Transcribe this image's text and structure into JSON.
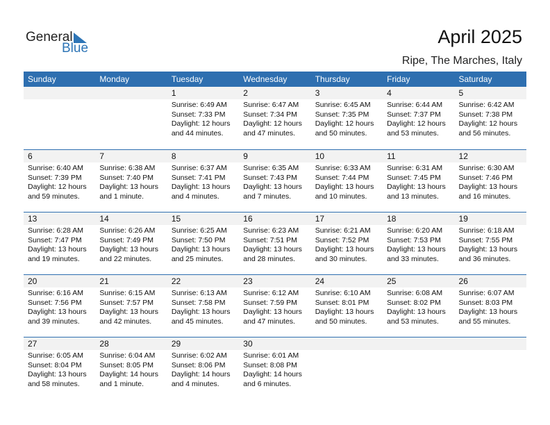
{
  "logo": {
    "general": "General",
    "blue": "Blue"
  },
  "title": "April 2025",
  "location": "Ripe, The Marches, Italy",
  "colors": {
    "header": "#2e6fb0",
    "band": "#f2f2f2",
    "logo_blue": "#2e75b6"
  },
  "weekdays": [
    "Sunday",
    "Monday",
    "Tuesday",
    "Wednesday",
    "Thursday",
    "Friday",
    "Saturday"
  ],
  "weeks": [
    [
      null,
      null,
      {
        "day": "1",
        "sunrise": "Sunrise: 6:49 AM",
        "sunset": "Sunset: 7:33 PM",
        "daylight": "Daylight: 12 hours",
        "minutes": "and 44 minutes."
      },
      {
        "day": "2",
        "sunrise": "Sunrise: 6:47 AM",
        "sunset": "Sunset: 7:34 PM",
        "daylight": "Daylight: 12 hours",
        "minutes": "and 47 minutes."
      },
      {
        "day": "3",
        "sunrise": "Sunrise: 6:45 AM",
        "sunset": "Sunset: 7:35 PM",
        "daylight": "Daylight: 12 hours",
        "minutes": "and 50 minutes."
      },
      {
        "day": "4",
        "sunrise": "Sunrise: 6:44 AM",
        "sunset": "Sunset: 7:37 PM",
        "daylight": "Daylight: 12 hours",
        "minutes": "and 53 minutes."
      },
      {
        "day": "5",
        "sunrise": "Sunrise: 6:42 AM",
        "sunset": "Sunset: 7:38 PM",
        "daylight": "Daylight: 12 hours",
        "minutes": "and 56 minutes."
      }
    ],
    [
      {
        "day": "6",
        "sunrise": "Sunrise: 6:40 AM",
        "sunset": "Sunset: 7:39 PM",
        "daylight": "Daylight: 12 hours",
        "minutes": "and 59 minutes."
      },
      {
        "day": "7",
        "sunrise": "Sunrise: 6:38 AM",
        "sunset": "Sunset: 7:40 PM",
        "daylight": "Daylight: 13 hours",
        "minutes": "and 1 minute."
      },
      {
        "day": "8",
        "sunrise": "Sunrise: 6:37 AM",
        "sunset": "Sunset: 7:41 PM",
        "daylight": "Daylight: 13 hours",
        "minutes": "and 4 minutes."
      },
      {
        "day": "9",
        "sunrise": "Sunrise: 6:35 AM",
        "sunset": "Sunset: 7:43 PM",
        "daylight": "Daylight: 13 hours",
        "minutes": "and 7 minutes."
      },
      {
        "day": "10",
        "sunrise": "Sunrise: 6:33 AM",
        "sunset": "Sunset: 7:44 PM",
        "daylight": "Daylight: 13 hours",
        "minutes": "and 10 minutes."
      },
      {
        "day": "11",
        "sunrise": "Sunrise: 6:31 AM",
        "sunset": "Sunset: 7:45 PM",
        "daylight": "Daylight: 13 hours",
        "minutes": "and 13 minutes."
      },
      {
        "day": "12",
        "sunrise": "Sunrise: 6:30 AM",
        "sunset": "Sunset: 7:46 PM",
        "daylight": "Daylight: 13 hours",
        "minutes": "and 16 minutes."
      }
    ],
    [
      {
        "day": "13",
        "sunrise": "Sunrise: 6:28 AM",
        "sunset": "Sunset: 7:47 PM",
        "daylight": "Daylight: 13 hours",
        "minutes": "and 19 minutes."
      },
      {
        "day": "14",
        "sunrise": "Sunrise: 6:26 AM",
        "sunset": "Sunset: 7:49 PM",
        "daylight": "Daylight: 13 hours",
        "minutes": "and 22 minutes."
      },
      {
        "day": "15",
        "sunrise": "Sunrise: 6:25 AM",
        "sunset": "Sunset: 7:50 PM",
        "daylight": "Daylight: 13 hours",
        "minutes": "and 25 minutes."
      },
      {
        "day": "16",
        "sunrise": "Sunrise: 6:23 AM",
        "sunset": "Sunset: 7:51 PM",
        "daylight": "Daylight: 13 hours",
        "minutes": "and 28 minutes."
      },
      {
        "day": "17",
        "sunrise": "Sunrise: 6:21 AM",
        "sunset": "Sunset: 7:52 PM",
        "daylight": "Daylight: 13 hours",
        "minutes": "and 30 minutes."
      },
      {
        "day": "18",
        "sunrise": "Sunrise: 6:20 AM",
        "sunset": "Sunset: 7:53 PM",
        "daylight": "Daylight: 13 hours",
        "minutes": "and 33 minutes."
      },
      {
        "day": "19",
        "sunrise": "Sunrise: 6:18 AM",
        "sunset": "Sunset: 7:55 PM",
        "daylight": "Daylight: 13 hours",
        "minutes": "and 36 minutes."
      }
    ],
    [
      {
        "day": "20",
        "sunrise": "Sunrise: 6:16 AM",
        "sunset": "Sunset: 7:56 PM",
        "daylight": "Daylight: 13 hours",
        "minutes": "and 39 minutes."
      },
      {
        "day": "21",
        "sunrise": "Sunrise: 6:15 AM",
        "sunset": "Sunset: 7:57 PM",
        "daylight": "Daylight: 13 hours",
        "minutes": "and 42 minutes."
      },
      {
        "day": "22",
        "sunrise": "Sunrise: 6:13 AM",
        "sunset": "Sunset: 7:58 PM",
        "daylight": "Daylight: 13 hours",
        "minutes": "and 45 minutes."
      },
      {
        "day": "23",
        "sunrise": "Sunrise: 6:12 AM",
        "sunset": "Sunset: 7:59 PM",
        "daylight": "Daylight: 13 hours",
        "minutes": "and 47 minutes."
      },
      {
        "day": "24",
        "sunrise": "Sunrise: 6:10 AM",
        "sunset": "Sunset: 8:01 PM",
        "daylight": "Daylight: 13 hours",
        "minutes": "and 50 minutes."
      },
      {
        "day": "25",
        "sunrise": "Sunrise: 6:08 AM",
        "sunset": "Sunset: 8:02 PM",
        "daylight": "Daylight: 13 hours",
        "minutes": "and 53 minutes."
      },
      {
        "day": "26",
        "sunrise": "Sunrise: 6:07 AM",
        "sunset": "Sunset: 8:03 PM",
        "daylight": "Daylight: 13 hours",
        "minutes": "and 55 minutes."
      }
    ],
    [
      {
        "day": "27",
        "sunrise": "Sunrise: 6:05 AM",
        "sunset": "Sunset: 8:04 PM",
        "daylight": "Daylight: 13 hours",
        "minutes": "and 58 minutes."
      },
      {
        "day": "28",
        "sunrise": "Sunrise: 6:04 AM",
        "sunset": "Sunset: 8:05 PM",
        "daylight": "Daylight: 14 hours",
        "minutes": "and 1 minute."
      },
      {
        "day": "29",
        "sunrise": "Sunrise: 6:02 AM",
        "sunset": "Sunset: 8:06 PM",
        "daylight": "Daylight: 14 hours",
        "minutes": "and 4 minutes."
      },
      {
        "day": "30",
        "sunrise": "Sunrise: 6:01 AM",
        "sunset": "Sunset: 8:08 PM",
        "daylight": "Daylight: 14 hours",
        "minutes": "and 6 minutes."
      },
      null,
      null,
      null
    ]
  ]
}
